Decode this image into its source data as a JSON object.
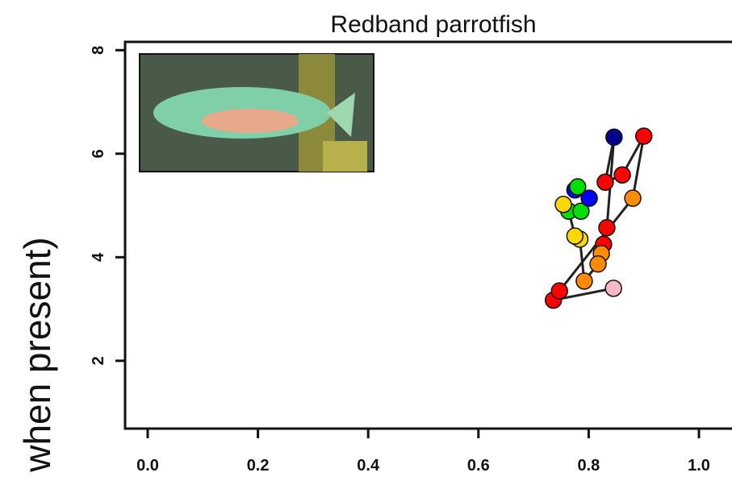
{
  "chart_data": {
    "type": "scatter",
    "title": "Redband parrotfish",
    "y_label": "when present)",
    "x": [
      0.845,
      0.736,
      0.747,
      0.88,
      0.9,
      0.861,
      0.83,
      0.846,
      0.833,
      0.827,
      0.823,
      0.817,
      0.792,
      0.784,
      0.775,
      0.764,
      0.754,
      0.786,
      0.801,
      0.775,
      0.78
    ],
    "values": [
      3.4,
      3.17,
      3.35,
      5.14,
      6.34,
      5.59,
      5.45,
      6.32,
      4.57,
      4.25,
      4.07,
      3.87,
      3.54,
      4.35,
      4.41,
      4.89,
      5.02,
      4.89,
      5.14,
      5.3,
      5.36
    ],
    "colors": [
      "#f4b8c8",
      "#ff0000",
      "#ff0000",
      "#ff8c00",
      "#ff0000",
      "#ff0000",
      "#ff0000",
      "#00008b",
      "#ff0000",
      "#ff0000",
      "#ff8c00",
      "#ff8c00",
      "#ff8c00",
      "#ffd700",
      "#ffd700",
      "#00dd00",
      "#ffd700",
      "#00dd00",
      "#0000ff",
      "#0000ff",
      "#00dd00"
    ],
    "line_color": "#222222",
    "xlim": [
      -0.041,
      1.06
    ],
    "ylim": [
      0.69,
      8.16
    ],
    "xticks": [
      {
        "value": 0,
        "label": "0.0"
      },
      0.2,
      0.4,
      0.6,
      0.8,
      {
        "value": 1,
        "label": "1.0"
      }
    ],
    "yticks": [
      2,
      4,
      6,
      8
    ]
  }
}
